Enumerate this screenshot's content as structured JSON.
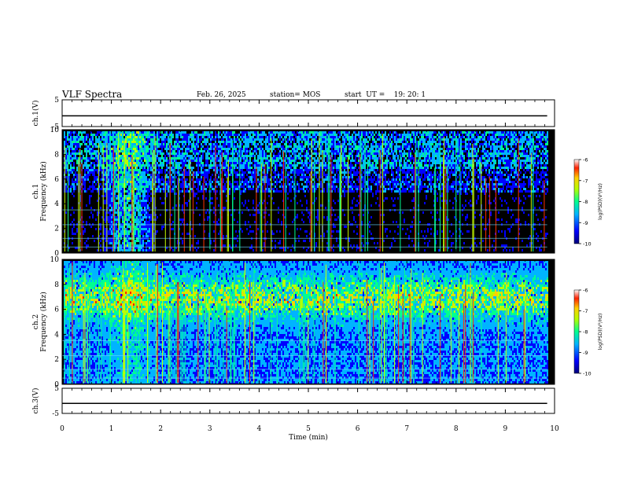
{
  "header": {
    "title": "VLF Spectra",
    "date": "Feb. 26, 2025",
    "station": "station= MOS",
    "start": "start  UT =    19: 20: 1"
  },
  "chart_data": [
    {
      "type": "line",
      "panel": "ch1-waveform",
      "ylabel": "ch.1(V)",
      "ylim": [
        -5,
        5
      ],
      "yticks": [
        "5",
        "-5"
      ],
      "x": [
        0,
        10
      ],
      "series": [
        {
          "values": [
            -1,
            -1
          ]
        }
      ]
    },
    {
      "type": "heatmap",
      "panel": "ch1-spectrogram",
      "ylabel": "ch.1\nFrequency (kHz)",
      "ylim": [
        0,
        10
      ],
      "yticks": [
        "0",
        "2",
        "4",
        "6",
        "8",
        "10"
      ],
      "xlim": [
        0,
        10
      ],
      "colorbar": {
        "label": "log(PSD)(V²/Hz)",
        "range": [
          -10,
          -6
        ],
        "ticks": [
          "-6",
          "-7",
          "-8",
          "-9",
          "-10"
        ]
      }
    },
    {
      "type": "heatmap",
      "panel": "ch2-spectrogram",
      "ylabel": "ch.2\nFrequency (kHz)",
      "ylim": [
        0,
        10
      ],
      "yticks": [
        "0",
        "2",
        "4",
        "6",
        "8",
        "10"
      ],
      "xlim": [
        0,
        10
      ],
      "colorbar": {
        "label": "log(PSD)(V²/Hz)",
        "range": [
          -10,
          -6
        ],
        "ticks": [
          "-6",
          "-7",
          "-8",
          "-9",
          "-10"
        ]
      }
    },
    {
      "type": "line",
      "panel": "ch3-waveform",
      "ylabel": "ch.3(V)",
      "ylim": [
        -5,
        5
      ],
      "yticks": [
        "5",
        "-5"
      ],
      "x": [
        0,
        10
      ],
      "series": [
        {
          "values": [
            -1,
            -1
          ]
        }
      ]
    }
  ],
  "xaxis": {
    "label": "Time (min)",
    "ticks": [
      "0",
      "1",
      "2",
      "3",
      "4",
      "5",
      "6",
      "7",
      "8",
      "9",
      "10"
    ],
    "xlim": [
      0,
      10
    ]
  },
  "colors": {
    "background": "#000000",
    "colormap": [
      "#00007a",
      "#0000ff",
      "#00b4ff",
      "#00ff90",
      "#b4ff00",
      "#ffd000",
      "#ff2000",
      "#ffffff"
    ]
  }
}
